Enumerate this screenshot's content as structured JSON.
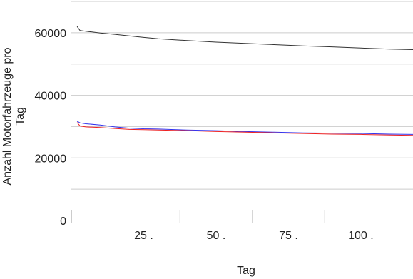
{
  "chart_data": {
    "type": "line",
    "xlabel": "Tag",
    "ylabel": "Anzahl Motorfahrzeuge pro Tag",
    "xlim": [
      0,
      118
    ],
    "ylim": [
      0,
      70000
    ],
    "x_ticks": [
      {
        "value": 25,
        "label": "25 ."
      },
      {
        "value": 50,
        "label": "50 ."
      },
      {
        "value": 75,
        "label": "75 ."
      },
      {
        "value": 100,
        "label": "100 ."
      }
    ],
    "y_ticks": [
      {
        "value": 0,
        "label": "0"
      },
      {
        "value": 20000,
        "label": "20000"
      },
      {
        "value": 40000,
        "label": "40000"
      },
      {
        "value": 60000,
        "label": "60000"
      }
    ],
    "y_gridlines": [
      10000,
      20000,
      30000,
      40000,
      50000,
      60000,
      70000
    ],
    "grid": true,
    "legend": "none",
    "series": [
      {
        "color": "#333333",
        "x": [
          2,
          3,
          5,
          10,
          15,
          20,
          25,
          30,
          40,
          50,
          60,
          70,
          80,
          90,
          100,
          110,
          118
        ],
        "y": [
          62000,
          60700,
          60500,
          59900,
          59500,
          59000,
          58500,
          58100,
          57500,
          57000,
          56600,
          56200,
          55800,
          55500,
          55100,
          54800,
          54600
        ]
      },
      {
        "color": "#3333ee",
        "x": [
          2,
          3,
          5,
          10,
          15,
          20,
          25,
          30,
          40,
          50,
          60,
          70,
          80,
          90,
          100,
          110,
          118
        ],
        "y": [
          31700,
          31200,
          30900,
          30500,
          29900,
          29500,
          29300,
          29200,
          28900,
          28700,
          28400,
          28200,
          28000,
          27900,
          27800,
          27600,
          27500
        ]
      },
      {
        "color": "#ee2222",
        "x": [
          2,
          3,
          5,
          10,
          15,
          20,
          25,
          30,
          40,
          50,
          60,
          70,
          80,
          90,
          100,
          110,
          118
        ],
        "y": [
          31300,
          30200,
          29900,
          29700,
          29400,
          29100,
          29000,
          28900,
          28700,
          28400,
          28200,
          28000,
          27800,
          27600,
          27500,
          27300,
          27200
        ]
      }
    ]
  }
}
